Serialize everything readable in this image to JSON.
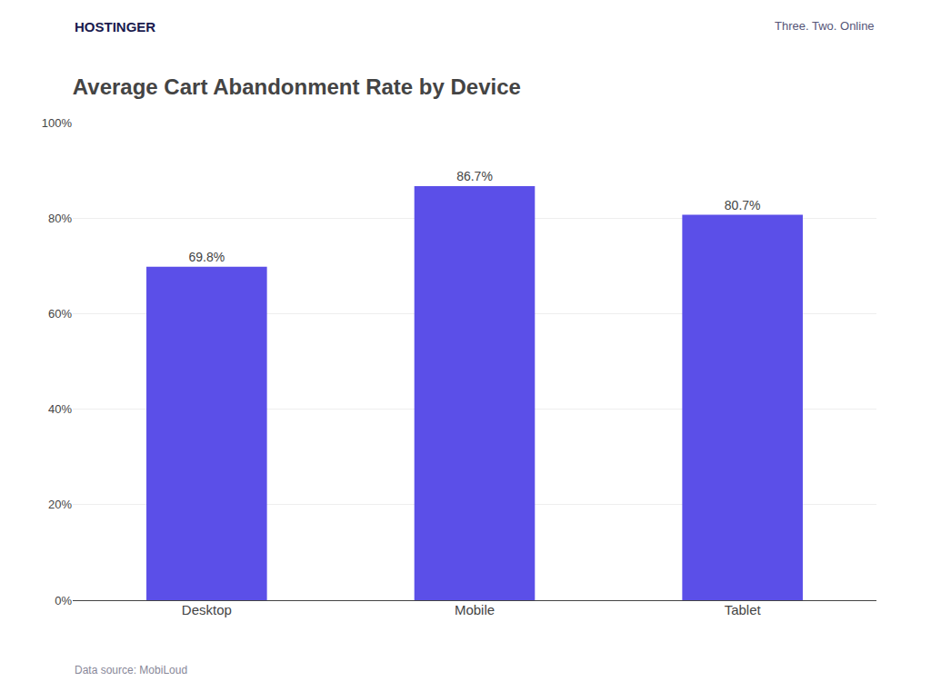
{
  "chart_data": {
    "type": "bar",
    "title": "Average Cart Abandonment Rate by Device",
    "categories": [
      "Desktop",
      "Mobile",
      "Tablet"
    ],
    "values": [
      69.8,
      86.7,
      80.7
    ],
    "value_labels": [
      "69.8%",
      "86.7%",
      "80.7%"
    ],
    "data_labels": true,
    "color": "#5B4FE8",
    "ylim": [
      0,
      100
    ],
    "yticks": [
      {
        "value": 0,
        "label": "0%"
      },
      {
        "value": 20,
        "label": "20%"
      },
      {
        "value": 40,
        "label": "40%"
      },
      {
        "value": 60,
        "label": "60%"
      },
      {
        "value": 80,
        "label": "80%"
      },
      {
        "value": 100,
        "label": "100%"
      }
    ],
    "grid": true,
    "annotations": [
      "HOSTINGER",
      "Three. Two. Online",
      "Data source: MobiLoud"
    ]
  }
}
